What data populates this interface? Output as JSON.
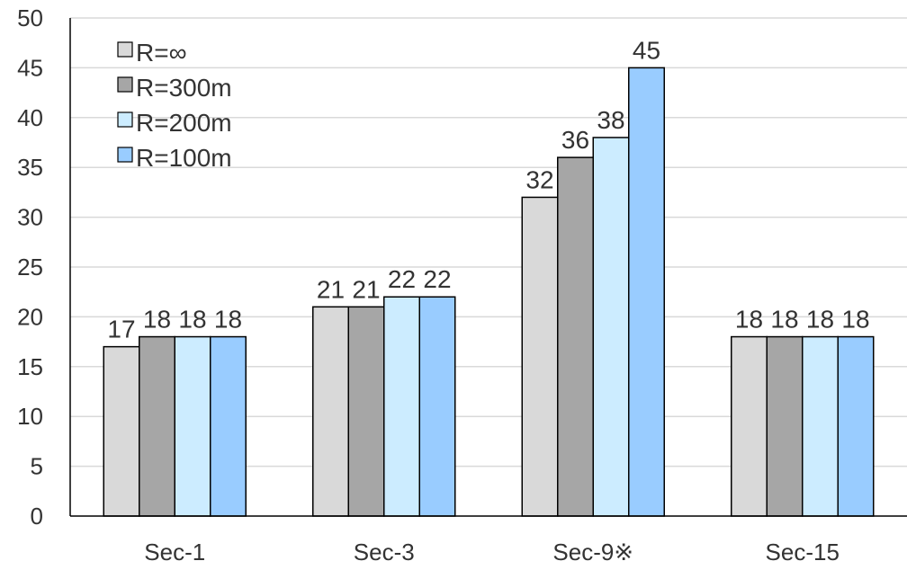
{
  "chart_data": {
    "type": "bar",
    "categories": [
      "Sec-1",
      "Sec-3",
      "Sec-9※",
      "Sec-15"
    ],
    "series": [
      {
        "name": "R=∞",
        "values": [
          17,
          21,
          32,
          18
        ],
        "color": "#d9d9d9"
      },
      {
        "name": "R=300m",
        "values": [
          18,
          21,
          36,
          18
        ],
        "color": "#a6a6a6"
      },
      {
        "name": "R=200m",
        "values": [
          18,
          22,
          38,
          18
        ],
        "color": "#ccecff"
      },
      {
        "name": "R=100m",
        "values": [
          18,
          22,
          45,
          18
        ],
        "color": "#99ccff"
      }
    ],
    "ylim": [
      0,
      50
    ],
    "yticks": [
      0,
      5,
      10,
      15,
      20,
      25,
      30,
      35,
      40,
      45,
      50
    ],
    "grid": true,
    "legend_position": "top-left",
    "data_labels": true
  }
}
